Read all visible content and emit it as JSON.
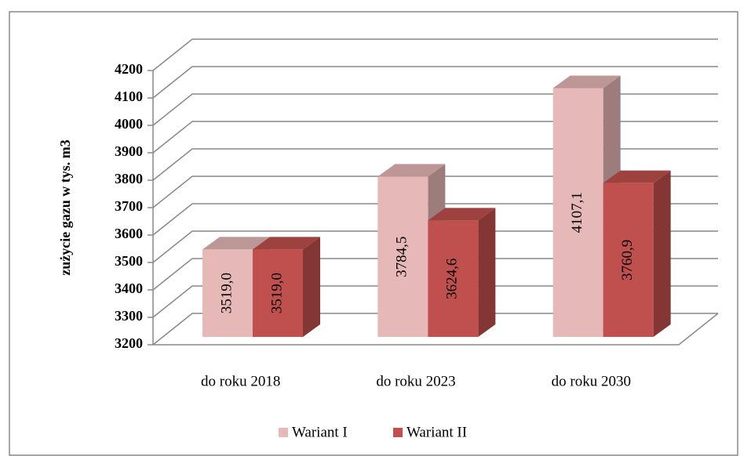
{
  "chart_data": {
    "type": "bar3d",
    "y_label": "zużycie gazu w tys. m3",
    "categories": [
      "do roku 2018",
      "do roku 2023",
      "do roku 2030"
    ],
    "series": [
      {
        "name": "Wariant I",
        "color": "#e6b8b7",
        "values": [
          3519.0,
          3784.5,
          4107.1
        ],
        "value_labels": [
          "3519,0",
          "3784,5",
          "4107,1"
        ]
      },
      {
        "name": "Wariant II",
        "color": "#c0504d",
        "values": [
          3519.0,
          3624.6,
          3760.9
        ],
        "value_labels": [
          "3519,0",
          "3624,6",
          "3760,9"
        ]
      }
    ],
    "ylim": [
      3200,
      4200
    ],
    "yticks": [
      3200,
      3300,
      3400,
      3500,
      3600,
      3700,
      3800,
      3900,
      4000,
      4100,
      4200
    ],
    "grid": true,
    "legend": "bottom"
  }
}
